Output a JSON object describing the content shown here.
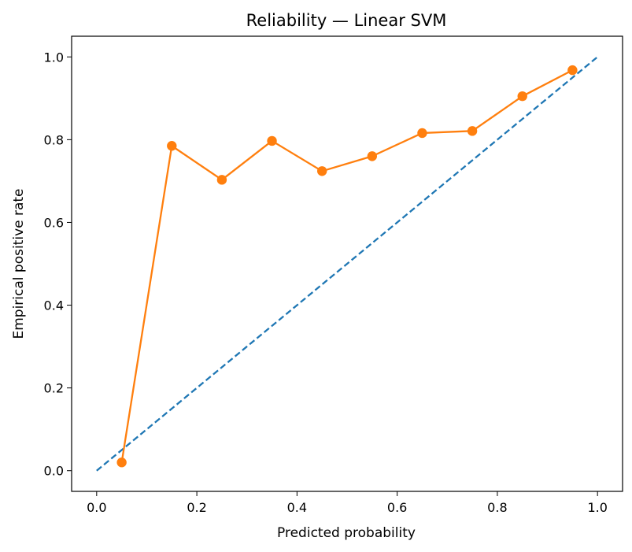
{
  "chart_data": {
    "type": "line",
    "title": "Reliability — Linear SVM",
    "xlabel": "Predicted probability",
    "ylabel": "Empirical positive rate",
    "xlim": [
      -0.05,
      1.05
    ],
    "ylim": [
      -0.05,
      1.05
    ],
    "xticks": [
      "0.0",
      "0.2",
      "0.4",
      "0.6",
      "0.8",
      "1.0"
    ],
    "yticks": [
      "0.0",
      "0.2",
      "0.4",
      "0.6",
      "0.8",
      "1.0"
    ],
    "grid": false,
    "legend": "none",
    "series": [
      {
        "style": "dashed",
        "color": "#1f77b4",
        "x": [
          0.0,
          1.0
        ],
        "y": [
          0.0,
          1.0
        ]
      },
      {
        "style": "line-markers",
        "color": "#ff7f0e",
        "x": [
          0.05,
          0.15,
          0.25,
          0.35,
          0.45,
          0.55,
          0.65,
          0.75,
          0.85,
          0.95
        ],
        "y": [
          0.02,
          0.785,
          0.703,
          0.797,
          0.724,
          0.76,
          0.816,
          0.821,
          0.905,
          0.968
        ]
      }
    ]
  }
}
